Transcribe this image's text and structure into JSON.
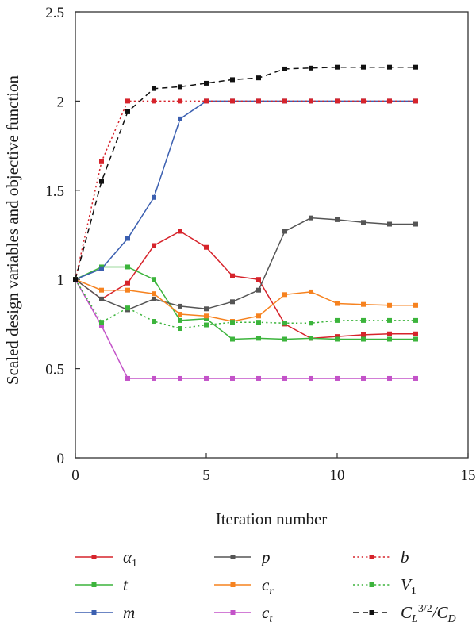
{
  "chart_data": {
    "type": "line",
    "xlabel": "Iteration number",
    "ylabel": "Scaled design variables and objective function",
    "xlim": [
      0,
      15
    ],
    "ylim": [
      0,
      2.5
    ],
    "xticks": [
      "0",
      "5",
      "10",
      "15"
    ],
    "yticks": [
      "0",
      "0.5",
      "1",
      "1.5",
      "2",
      "2.5"
    ],
    "grid": false,
    "legend_position": "bottom",
    "series": [
      {
        "key": "alpha1",
        "name": "α1",
        "color": "#d6232b",
        "dash": "solid",
        "x": [
          0,
          1,
          2,
          3,
          4,
          5,
          6,
          7,
          8,
          9,
          10,
          11,
          12,
          13
        ],
        "values": [
          1.0,
          0.89,
          0.98,
          1.19,
          1.27,
          1.18,
          1.02,
          1.0,
          0.75,
          0.67,
          0.68,
          0.69,
          0.695,
          0.695
        ]
      },
      {
        "key": "t",
        "name": "t",
        "color": "#3cb43c",
        "dash": "solid",
        "x": [
          0,
          1,
          2,
          3,
          4,
          5,
          6,
          7,
          8,
          9,
          10,
          11,
          12,
          13
        ],
        "values": [
          1.0,
          1.07,
          1.07,
          1.0,
          0.77,
          0.78,
          0.665,
          0.67,
          0.665,
          0.67,
          0.665,
          0.665,
          0.665,
          0.665
        ]
      },
      {
        "key": "m",
        "name": "m",
        "color": "#3b5fb0",
        "dash": "solid",
        "x": [
          0,
          1,
          2,
          3,
          4,
          5,
          6,
          7,
          8,
          9,
          10,
          11,
          12,
          13
        ],
        "values": [
          1.0,
          1.06,
          1.23,
          1.46,
          1.9,
          2.0,
          2.0,
          2.0,
          2.0,
          2.0,
          2.0,
          2.0,
          2.0,
          2.0
        ]
      },
      {
        "key": "p",
        "name": "p",
        "color": "#555555",
        "dash": "solid",
        "x": [
          0,
          1,
          2,
          3,
          4,
          5,
          6,
          7,
          8,
          9,
          10,
          11,
          12,
          13
        ],
        "values": [
          1.0,
          0.89,
          0.83,
          0.89,
          0.85,
          0.835,
          0.875,
          0.94,
          1.27,
          1.345,
          1.335,
          1.32,
          1.31,
          1.31
        ]
      },
      {
        "key": "cr",
        "name": "cr",
        "color": "#f6821f",
        "dash": "solid",
        "x": [
          0,
          1,
          2,
          3,
          4,
          5,
          6,
          7,
          8,
          9,
          10,
          11,
          12,
          13
        ],
        "values": [
          1.0,
          0.94,
          0.94,
          0.92,
          0.805,
          0.795,
          0.765,
          0.795,
          0.915,
          0.93,
          0.865,
          0.86,
          0.855,
          0.855
        ]
      },
      {
        "key": "ct",
        "name": "ct",
        "color": "#c352c8",
        "dash": "solid",
        "x": [
          0,
          1,
          2,
          3,
          4,
          5,
          6,
          7,
          8,
          9,
          10,
          11,
          12,
          13
        ],
        "values": [
          1.0,
          0.74,
          0.445,
          0.445,
          0.445,
          0.445,
          0.445,
          0.445,
          0.445,
          0.445,
          0.445,
          0.445,
          0.445,
          0.445
        ]
      },
      {
        "key": "b",
        "name": "b",
        "color": "#d6232b",
        "dash": "dotted",
        "x": [
          0,
          1,
          2,
          3,
          4,
          5,
          6,
          7,
          8,
          9,
          10,
          11,
          12,
          13
        ],
        "values": [
          1.0,
          1.66,
          2.0,
          2.0,
          2.0,
          2.0,
          2.0,
          2.0,
          2.0,
          2.0,
          2.0,
          2.0,
          2.0,
          2.0
        ]
      },
      {
        "key": "V1",
        "name": "V1",
        "color": "#3cb43c",
        "dash": "dotted",
        "x": [
          0,
          1,
          2,
          3,
          4,
          5,
          6,
          7,
          8,
          9,
          10,
          11,
          12,
          13
        ],
        "values": [
          1.0,
          0.76,
          0.84,
          0.765,
          0.725,
          0.745,
          0.76,
          0.76,
          0.755,
          0.755,
          0.77,
          0.77,
          0.77,
          0.77
        ]
      },
      {
        "key": "obj",
        "name": "CL3/2/CD",
        "color": "#111111",
        "dash": "dashed",
        "x": [
          0,
          1,
          2,
          3,
          4,
          5,
          6,
          7,
          8,
          9,
          10,
          11,
          12,
          13
        ],
        "values": [
          1.0,
          1.55,
          1.94,
          2.07,
          2.08,
          2.1,
          2.12,
          2.13,
          2.18,
          2.185,
          2.19,
          2.19,
          2.19,
          2.19
        ]
      }
    ]
  }
}
